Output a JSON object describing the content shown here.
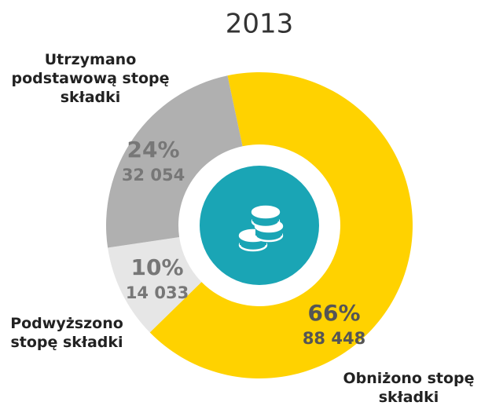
{
  "chart_data": {
    "type": "pie",
    "title": "2013",
    "categories": [
      "Obniżono stopę składki",
      "Podwyższono stopę składki",
      "Utrzymano podstawową stopę składki"
    ],
    "values": [
      66,
      10,
      24
    ],
    "value_labels": [
      "66%",
      "10%",
      "24%"
    ],
    "counts": [
      {
        "value": 88448,
        "label": "88 448"
      },
      {
        "value": 14033,
        "label": "14 033"
      },
      {
        "value": 32054,
        "label": "32 054"
      }
    ],
    "colors": [
      "#ffd200",
      "#e6e6e6",
      "#b0b0b0"
    ],
    "donut": true
  }
}
